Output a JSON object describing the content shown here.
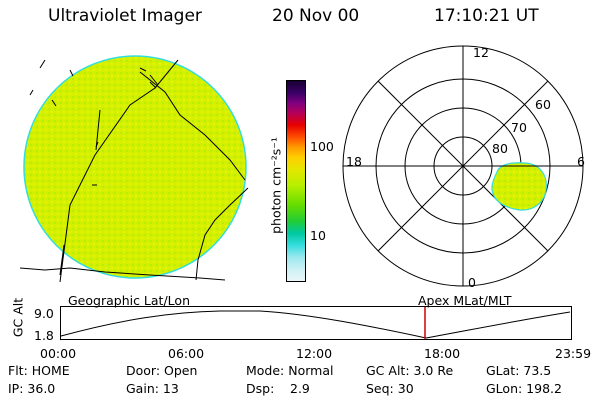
{
  "header": {
    "title": "Ultraviolet Imager",
    "date": "20 Nov 00",
    "time": "17:10:21 UT"
  },
  "colorbar": {
    "unit_label": "photon cm⁻²s⁻¹",
    "ticks": [
      "100",
      "10"
    ],
    "colors": [
      "#1a0033",
      "#3a0066",
      "#800080",
      "#b4005a",
      "#e60000",
      "#ff4d00",
      "#ff9900",
      "#ffcc00",
      "#e6e600",
      "#b8ef00",
      "#66dd00",
      "#22cc33",
      "#00c8a0",
      "#33dddd",
      "#99e8ee",
      "#ccf0f4",
      "#eaf6f8"
    ]
  },
  "polar_plot": {
    "mlt_labels": [
      "12",
      "18",
      "6",
      "0"
    ],
    "lat_labels": [
      "60",
      "70",
      "80"
    ]
  },
  "timeline": {
    "y_axis_label": "GC Alt",
    "y_ticks": [
      "9.0",
      "1.8"
    ],
    "left_label": "Geographic Lat/Lon",
    "right_label": "Apex MLat/MLT",
    "x_ticks": [
      "00:00",
      "06:00",
      "12:00",
      "18:00",
      "23:59"
    ],
    "current_marker_time": "17:10"
  },
  "info": {
    "flt": "Flt: HOME",
    "ip": "IP: 36.0",
    "door": "Door: Open",
    "gain": "Gain: 13",
    "mode": "Mode: Normal",
    "dsp_label": "Dsp:",
    "dsp_value": "2.9",
    "gc_alt": "GC Alt: 3.0 Re",
    "seq": "Seq: 30",
    "glat": "GLat: 73.5",
    "glon": "GLon: 198.2"
  },
  "accent_colors": {
    "image_fill": "#d4f000",
    "image_edge": "#33dddd",
    "marker": "#cc0000"
  }
}
